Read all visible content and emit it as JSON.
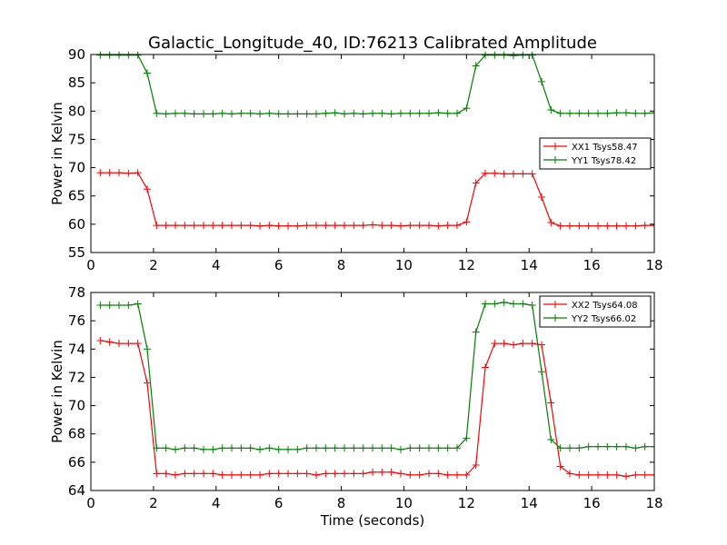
{
  "figure": {
    "title": "Galactic_Longitude_40, ID:76213 Calibrated Amplitude",
    "xlabel": "Time (seconds)"
  },
  "colors": {
    "xx": "#ff0000",
    "yy": "#008000",
    "frame": "#000000"
  },
  "chart_data": [
    {
      "type": "line",
      "ylabel": "Power in Kelvin",
      "xlim": [
        0,
        18
      ],
      "ylim": [
        55,
        90
      ],
      "xticks": [
        "0",
        "2",
        "4",
        "6",
        "8",
        "10",
        "12",
        "14",
        "16",
        "18"
      ],
      "yticks": [
        "55",
        "60",
        "65",
        "70",
        "75",
        "80",
        "85",
        "90"
      ],
      "legend_position": "center-right",
      "x": [
        0.3,
        0.6,
        0.9,
        1.2,
        1.5,
        1.8,
        2.1,
        2.4,
        2.7,
        3.0,
        3.3,
        3.6,
        3.9,
        4.2,
        4.5,
        4.8,
        5.1,
        5.4,
        5.7,
        6.0,
        6.3,
        6.6,
        6.9,
        7.2,
        7.5,
        7.8,
        8.1,
        8.4,
        8.7,
        9.0,
        9.3,
        9.6,
        9.9,
        10.2,
        10.5,
        10.8,
        11.1,
        11.4,
        11.7,
        12.0,
        12.3,
        12.6,
        12.9,
        13.2,
        13.5,
        13.8,
        14.1,
        14.4,
        14.7,
        15.0,
        15.3,
        15.6,
        15.9,
        16.2,
        16.5,
        16.8,
        17.1,
        17.4,
        17.7,
        18.0
      ],
      "series": [
        {
          "name": "XX1 Tsys58.47",
          "color": "#ff0000",
          "values": [
            69.1,
            69.1,
            69.1,
            69.0,
            69.1,
            66.2,
            59.8,
            59.8,
            59.8,
            59.8,
            59.8,
            59.8,
            59.8,
            59.8,
            59.8,
            59.8,
            59.8,
            59.7,
            59.8,
            59.7,
            59.7,
            59.7,
            59.8,
            59.8,
            59.8,
            59.8,
            59.8,
            59.8,
            59.8,
            59.9,
            59.8,
            59.8,
            59.7,
            59.8,
            59.8,
            59.8,
            59.7,
            59.8,
            59.8,
            60.4,
            67.3,
            69.0,
            69.0,
            68.9,
            68.9,
            68.9,
            68.9,
            64.8,
            60.3,
            59.7,
            59.7,
            59.7,
            59.7,
            59.7,
            59.7,
            59.7,
            59.7,
            59.7,
            59.8,
            59.8
          ]
        },
        {
          "name": "YY1 Tsys78.42",
          "color": "#008000",
          "values": [
            89.9,
            89.9,
            89.9,
            89.9,
            89.9,
            86.7,
            79.6,
            79.5,
            79.6,
            79.6,
            79.5,
            79.5,
            79.5,
            79.6,
            79.5,
            79.6,
            79.6,
            79.5,
            79.6,
            79.5,
            79.5,
            79.5,
            79.5,
            79.5,
            79.6,
            79.7,
            79.5,
            79.6,
            79.5,
            79.6,
            79.6,
            79.5,
            79.6,
            79.6,
            79.6,
            79.6,
            79.7,
            79.6,
            79.6,
            80.5,
            88.0,
            89.9,
            89.9,
            89.9,
            89.8,
            89.9,
            89.9,
            85.2,
            80.2,
            79.6,
            79.6,
            79.6,
            79.6,
            79.6,
            79.6,
            79.7,
            79.7,
            79.6,
            79.6,
            79.7
          ]
        }
      ]
    },
    {
      "type": "line",
      "ylabel": "Power in Kelvin",
      "xlabel": "Time (seconds)",
      "xlim": [
        0,
        18
      ],
      "ylim": [
        64,
        78
      ],
      "xticks": [
        "0",
        "2",
        "4",
        "6",
        "8",
        "10",
        "12",
        "14",
        "16",
        "18"
      ],
      "yticks": [
        "64",
        "66",
        "68",
        "70",
        "72",
        "74",
        "76",
        "78"
      ],
      "legend_position": "top-right",
      "x": [
        0.3,
        0.6,
        0.9,
        1.2,
        1.5,
        1.8,
        2.1,
        2.4,
        2.7,
        3.0,
        3.3,
        3.6,
        3.9,
        4.2,
        4.5,
        4.8,
        5.1,
        5.4,
        5.7,
        6.0,
        6.3,
        6.6,
        6.9,
        7.2,
        7.5,
        7.8,
        8.1,
        8.4,
        8.7,
        9.0,
        9.3,
        9.6,
        9.9,
        10.2,
        10.5,
        10.8,
        11.1,
        11.4,
        11.7,
        12.0,
        12.3,
        12.6,
        12.9,
        13.2,
        13.5,
        13.8,
        14.1,
        14.4,
        14.7,
        15.0,
        15.3,
        15.6,
        15.9,
        16.2,
        16.5,
        16.8,
        17.1,
        17.4,
        17.7,
        18.0
      ],
      "series": [
        {
          "name": "XX2 Tsys64.08",
          "color": "#ff0000",
          "values": [
            74.6,
            74.5,
            74.4,
            74.4,
            74.4,
            71.6,
            65.2,
            65.2,
            65.1,
            65.2,
            65.2,
            65.2,
            65.2,
            65.1,
            65.1,
            65.1,
            65.1,
            65.1,
            65.2,
            65.2,
            65.2,
            65.2,
            65.2,
            65.1,
            65.2,
            65.2,
            65.2,
            65.2,
            65.2,
            65.3,
            65.3,
            65.3,
            65.2,
            65.1,
            65.1,
            65.2,
            65.2,
            65.1,
            65.1,
            65.1,
            65.8,
            72.7,
            74.4,
            74.4,
            74.3,
            74.4,
            74.4,
            74.3,
            70.2,
            65.7,
            65.2,
            65.1,
            65.1,
            65.1,
            65.1,
            65.1,
            65.0,
            65.1,
            65.1,
            65.1
          ]
        },
        {
          "name": "YY2 Tsys66.02",
          "color": "#008000",
          "values": [
            77.1,
            77.1,
            77.1,
            77.1,
            77.2,
            74.0,
            67.0,
            67.0,
            66.9,
            67.0,
            67.0,
            66.9,
            66.9,
            67.0,
            67.0,
            67.0,
            67.0,
            66.9,
            67.0,
            66.9,
            66.9,
            66.9,
            67.0,
            67.0,
            67.0,
            67.0,
            67.0,
            67.0,
            67.0,
            67.0,
            67.0,
            67.0,
            66.9,
            67.0,
            67.0,
            67.0,
            67.0,
            67.0,
            67.0,
            67.7,
            75.2,
            77.2,
            77.2,
            77.3,
            77.2,
            77.2,
            77.1,
            72.4,
            67.6,
            67.0,
            67.0,
            67.0,
            67.1,
            67.1,
            67.1,
            67.1,
            67.1,
            67.0,
            67.1,
            67.1
          ]
        }
      ]
    }
  ]
}
